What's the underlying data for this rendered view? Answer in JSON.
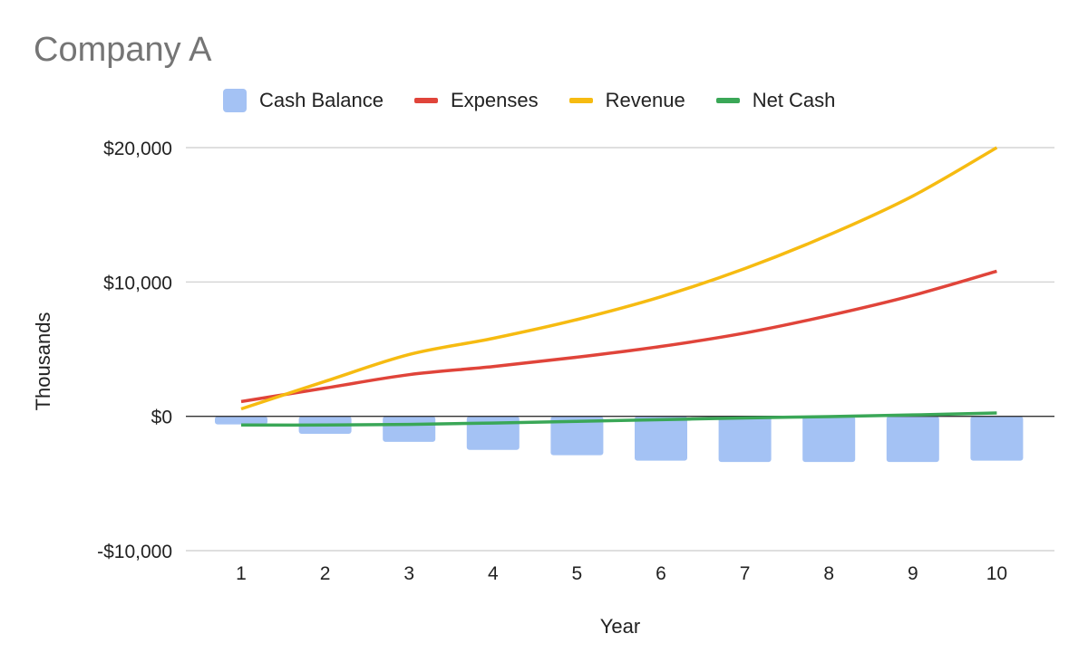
{
  "chart_data": {
    "type": "bar",
    "title": "Company A",
    "xlabel": "Year",
    "ylabel": "Thousands",
    "categories": [
      "1",
      "2",
      "3",
      "4",
      "5",
      "6",
      "7",
      "8",
      "9",
      "10"
    ],
    "ylim": [
      -10000,
      20000
    ],
    "yticks": [
      {
        "value": 20000,
        "label": "$20,000"
      },
      {
        "value": 10000,
        "label": "$10,000"
      },
      {
        "value": 0,
        "label": "$0"
      },
      {
        "value": -10000,
        "label": "-$10,000"
      }
    ],
    "grid": true,
    "legend_position": "top",
    "series": [
      {
        "name": "Cash Balance",
        "kind": "bar",
        "color": "#a4c2f4",
        "values": [
          -600,
          -1300,
          -1900,
          -2500,
          -2900,
          -3300,
          -3400,
          -3400,
          -3400,
          -3300
        ]
      },
      {
        "name": "Expenses",
        "kind": "line",
        "color": "#e0443a",
        "values": [
          1100,
          2100,
          3100,
          3700,
          4400,
          5200,
          6200,
          7500,
          9000,
          10800
        ]
      },
      {
        "name": "Revenue",
        "kind": "line",
        "color": "#f6bb11",
        "values": [
          550,
          2600,
          4600,
          5800,
          7200,
          8900,
          11000,
          13500,
          16400,
          20000
        ]
      },
      {
        "name": "Net Cash",
        "kind": "line",
        "color": "#3aa757",
        "values": [
          -650,
          -650,
          -600,
          -500,
          -380,
          -250,
          -120,
          -20,
          100,
          250
        ]
      }
    ]
  }
}
